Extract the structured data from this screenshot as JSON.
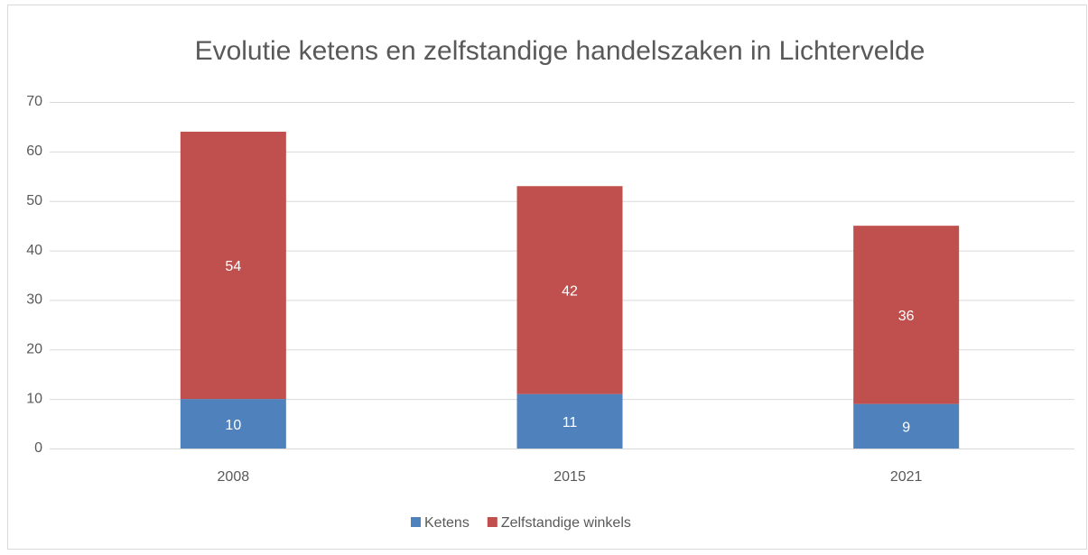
{
  "chart_data": {
    "type": "stacked_bar",
    "title": "Evolutie ketens en zelfstandige handelszaken in Lichtervelde",
    "categories": [
      "2008",
      "2015",
      "2021"
    ],
    "series": [
      {
        "name": "Ketens",
        "color": "#4f81bd",
        "values": [
          10,
          11,
          9
        ]
      },
      {
        "name": "Zelfstandige winkels",
        "color": "#c0504d",
        "values": [
          54,
          42,
          36
        ]
      }
    ],
    "ylim": [
      0,
      70
    ],
    "yticks": [
      0,
      10,
      20,
      30,
      40,
      50,
      60,
      70
    ],
    "grid": true,
    "legend": "bottom"
  }
}
